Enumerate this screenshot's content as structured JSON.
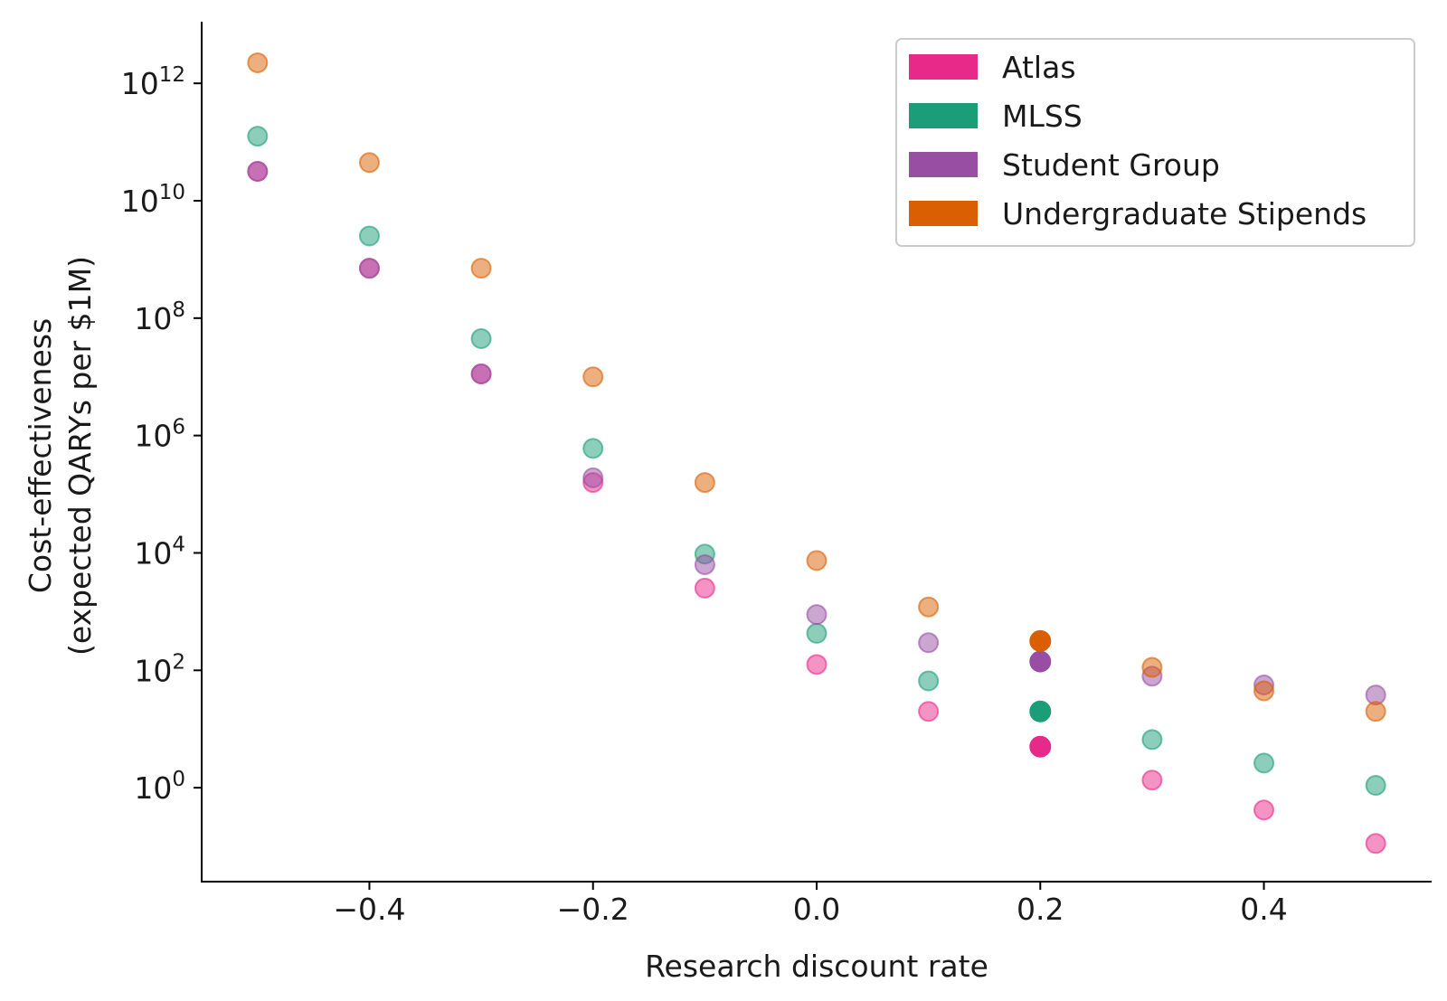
{
  "chart_data": {
    "type": "scatter",
    "title": "",
    "xlabel": "Research discount rate",
    "ylabel_line1": "Cost-effectiveness",
    "ylabel_line2": "(expected QARYs per $1M)",
    "xscale": "linear",
    "yscale": "log",
    "xlim": [
      -0.55,
      0.55
    ],
    "ylim_log10": [
      -1.6,
      13.05
    ],
    "xticks": [
      {
        "value": -0.4,
        "label": "−0.4"
      },
      {
        "value": -0.2,
        "label": "−0.2"
      },
      {
        "value": 0.0,
        "label": "0.0"
      },
      {
        "value": 0.2,
        "label": "0.2"
      },
      {
        "value": 0.4,
        "label": "0.4"
      }
    ],
    "yticks": [
      {
        "exp": 0,
        "base": "10",
        "sup": "0"
      },
      {
        "exp": 2,
        "base": "10",
        "sup": "2"
      },
      {
        "exp": 4,
        "base": "10",
        "sup": "4"
      },
      {
        "exp": 6,
        "base": "10",
        "sup": "6"
      },
      {
        "exp": 8,
        "base": "10",
        "sup": "8"
      },
      {
        "exp": 10,
        "base": "10",
        "sup": "10"
      },
      {
        "exp": 12,
        "base": "10",
        "sup": "12"
      }
    ],
    "highlight_x": 0.2,
    "legend_position": "upper-right",
    "x": [
      -0.5,
      -0.4,
      -0.3,
      -0.2,
      -0.1,
      0.0,
      0.1,
      0.2,
      0.3,
      0.4,
      0.5
    ],
    "series": [
      {
        "name": "Atlas",
        "key": "atlas",
        "color": "#e7298a",
        "y_log10": [
          10.5,
          8.85,
          7.05,
          5.2,
          3.4,
          2.1,
          1.3,
          0.7,
          0.13,
          -0.38,
          -0.95
        ]
      },
      {
        "name": "MLSS",
        "key": "mlss",
        "color": "#1b9e77",
        "y_log10": [
          11.1,
          9.4,
          7.65,
          5.78,
          3.98,
          2.63,
          1.82,
          1.3,
          0.82,
          0.42,
          0.04
        ]
      },
      {
        "name": "Student Group",
        "key": "student",
        "color": "#984ea3",
        "y_log10": [
          10.5,
          8.85,
          7.05,
          5.28,
          3.8,
          2.95,
          2.47,
          2.15,
          1.9,
          1.75,
          1.58
        ]
      },
      {
        "name": "Undergraduate Stipends",
        "key": "stipends",
        "color": "#d95f02",
        "y_log10": [
          12.35,
          10.65,
          8.85,
          7.0,
          5.2,
          3.87,
          3.08,
          2.5,
          2.05,
          1.65,
          1.3
        ]
      }
    ]
  }
}
